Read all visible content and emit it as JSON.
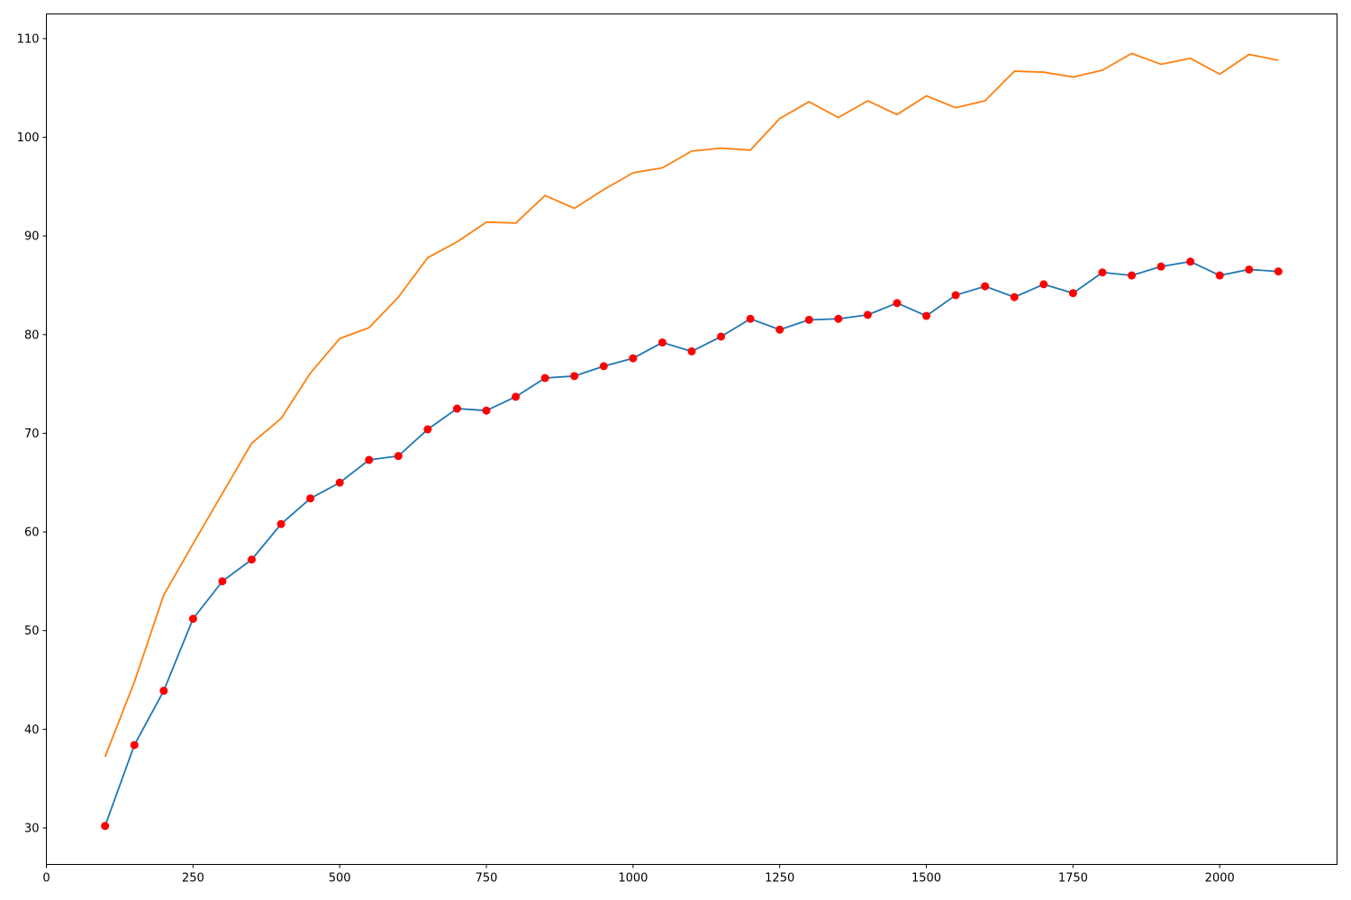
{
  "chart_data": {
    "type": "line",
    "title": "",
    "xlabel": "",
    "ylabel": "",
    "xlim": [
      0,
      2200
    ],
    "ylim": [
      26.3,
      112.5
    ],
    "x_ticks": [
      0,
      250,
      500,
      750,
      1000,
      1250,
      1500,
      1750,
      2000
    ],
    "y_ticks": [
      30,
      40,
      50,
      60,
      70,
      80,
      90,
      100,
      110
    ],
    "grid": false,
    "legend": "none",
    "x": [
      100,
      150,
      200,
      250,
      300,
      350,
      400,
      450,
      500,
      550,
      600,
      650,
      700,
      750,
      800,
      850,
      900,
      950,
      1000,
      1050,
      1100,
      1150,
      1200,
      1250,
      1300,
      1350,
      1400,
      1450,
      1500,
      1550,
      1600,
      1650,
      1700,
      1750,
      1800,
      1850,
      1900,
      1950,
      2000,
      2050,
      2100
    ],
    "series": [
      {
        "color": "#1f77b4",
        "marker_color": "#ff0000",
        "markers": true,
        "values": [
          30.2,
          38.4,
          43.9,
          51.2,
          55.0,
          57.2,
          60.8,
          63.4,
          65.0,
          67.3,
          67.7,
          70.4,
          72.5,
          72.3,
          73.7,
          75.6,
          75.8,
          76.8,
          77.6,
          79.2,
          78.3,
          79.8,
          81.6,
          80.5,
          81.5,
          81.6,
          82.0,
          83.2,
          81.9,
          84.0,
          84.9,
          83.8,
          85.1,
          84.2,
          86.3,
          86.0,
          86.9,
          87.4,
          86.0,
          86.6,
          86.4
        ]
      },
      {
        "color": "#ff7f0e",
        "markers": false,
        "values": [
          37.2,
          44.8,
          53.6,
          58.8,
          63.9,
          69.0,
          71.5,
          76.1,
          79.6,
          80.7,
          83.8,
          87.8,
          89.4,
          91.4,
          91.3,
          94.1,
          92.8,
          94.7,
          96.4,
          96.9,
          98.6,
          98.9,
          98.7,
          101.9,
          103.6,
          102.0,
          103.7,
          102.3,
          104.2,
          103.0,
          103.7,
          106.7,
          106.6,
          106.1,
          106.8,
          108.5,
          107.4,
          108.0,
          106.4,
          108.4,
          107.8
        ]
      }
    ]
  }
}
